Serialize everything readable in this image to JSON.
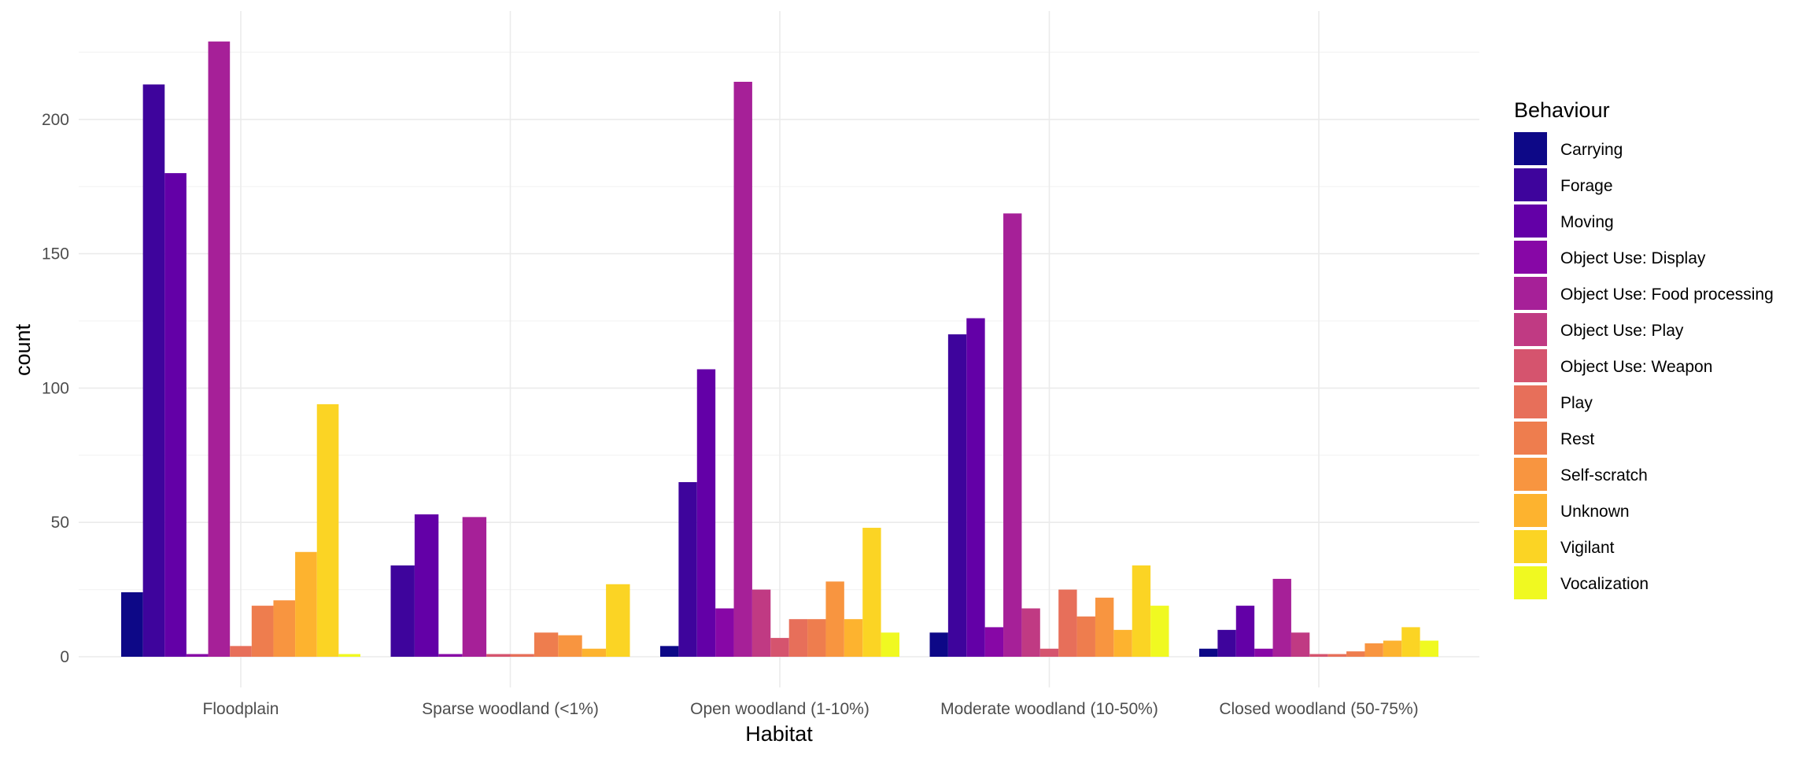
{
  "chart_data": {
    "type": "bar",
    "xlabel": "Habitat",
    "ylabel": "count",
    "ylim": [
      0,
      240
    ],
    "yticks": [
      0,
      50,
      100,
      150,
      200
    ],
    "grid": true,
    "legend": {
      "title": "Behaviour",
      "position": "right"
    },
    "categories": [
      "Floodplain",
      "Sparse woodland (<1%)",
      "Open woodland (1-10%)",
      "Moderate woodland (10-50%)",
      "Closed woodland (50-75%)"
    ],
    "series": [
      {
        "name": "Carrying",
        "color": "#0d0887",
        "values": [
          24,
          null,
          4,
          9,
          3
        ]
      },
      {
        "name": "Forage",
        "color": "#3e049c",
        "values": [
          213,
          34,
          65,
          120,
          10
        ]
      },
      {
        "name": "Moving",
        "color": "#6300a7",
        "values": [
          180,
          53,
          107,
          126,
          19
        ]
      },
      {
        "name": "Object Use: Display",
        "color": "#8707a6",
        "values": [
          1,
          1,
          18,
          11,
          3
        ]
      },
      {
        "name": "Object Use: Food processing",
        "color": "#a62098",
        "values": [
          229,
          52,
          214,
          165,
          29
        ]
      },
      {
        "name": "Object Use: Play",
        "color": "#c03a83",
        "values": [
          null,
          null,
          25,
          18,
          9
        ]
      },
      {
        "name": "Object Use: Weapon",
        "color": "#d5546e",
        "values": [
          null,
          1,
          7,
          3,
          1
        ]
      },
      {
        "name": "Play",
        "color": "#e76f5a",
        "values": [
          4,
          1,
          14,
          25,
          1
        ]
      },
      {
        "name": "Rest",
        "color": "#ee7d4e",
        "values": [
          19,
          9,
          14,
          15,
          2
        ]
      },
      {
        "name": "Self-scratch",
        "color": "#f89540",
        "values": [
          21,
          8,
          28,
          22,
          5
        ]
      },
      {
        "name": "Unknown",
        "color": "#fdb32f",
        "values": [
          39,
          3,
          14,
          10,
          6
        ]
      },
      {
        "name": "Vigilant",
        "color": "#fbd424",
        "values": [
          94,
          27,
          48,
          34,
          11
        ]
      },
      {
        "name": "Vocalization",
        "color": "#f0f921",
        "values": [
          1,
          null,
          9,
          19,
          6
        ]
      }
    ]
  }
}
